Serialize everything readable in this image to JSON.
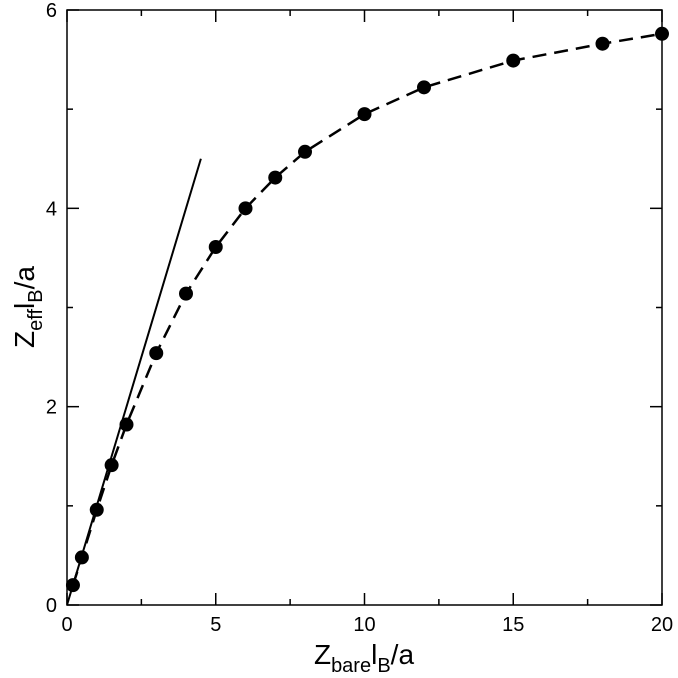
{
  "chart_data": {
    "type": "scatter",
    "title": "",
    "xlabel": {
      "parts": [
        {
          "text": "Z",
          "sub": false
        },
        {
          "text": "bare",
          "sub": true
        },
        {
          "text": "l",
          "sub": false
        },
        {
          "text": "B",
          "sub": true
        },
        {
          "text": "/a",
          "sub": false
        }
      ]
    },
    "ylabel": {
      "parts": [
        {
          "text": "Z",
          "sub": false
        },
        {
          "text": "eff",
          "sub": true
        },
        {
          "text": "l",
          "sub": false
        },
        {
          "text": "B",
          "sub": true
        },
        {
          "text": "/a",
          "sub": false
        }
      ]
    },
    "xlim": [
      0,
      20
    ],
    "ylim": [
      0,
      6
    ],
    "x_ticks": [
      0,
      5,
      10,
      15,
      20
    ],
    "x_tick_labels": [
      "0",
      "5",
      "10",
      "15",
      "20"
    ],
    "x_minor_ticks": [
      2.5,
      7.5,
      12.5,
      17.5
    ],
    "y_ticks": [
      0,
      2,
      4,
      6
    ],
    "y_tick_labels": [
      "0",
      "2",
      "4",
      "6"
    ],
    "y_minor_ticks": [
      1,
      3,
      5
    ],
    "grid": false,
    "legend": "none",
    "series": [
      {
        "style": "markers-dashed-line",
        "color": "#000000",
        "x": [
          0.2,
          0.5,
          1,
          1.5,
          2,
          3,
          4,
          5,
          6,
          7,
          8,
          10,
          12,
          15,
          18,
          20
        ],
        "y": [
          0.2,
          0.48,
          0.96,
          1.41,
          1.82,
          2.54,
          3.14,
          3.61,
          4.0,
          4.31,
          4.57,
          4.95,
          5.22,
          5.49,
          5.66,
          5.76
        ]
      },
      {
        "style": "solid-line",
        "color": "#000000",
        "x": [
          0,
          4.5
        ],
        "y": [
          0,
          4.5
        ]
      }
    ]
  }
}
